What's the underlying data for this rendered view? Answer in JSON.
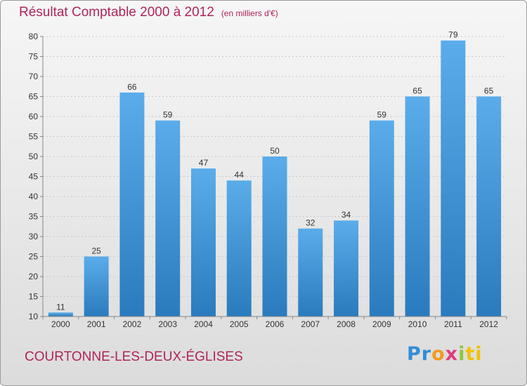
{
  "header": {
    "title": "Résultat Comptable 2000 à 2012",
    "unit": "(en milliers d'€)"
  },
  "footer": {
    "commune": "COURTONNE-LES-DEUX-ÉGLISES",
    "logo": [
      "Pr",
      "o",
      "x",
      "i",
      "ti"
    ]
  },
  "colors": {
    "bar_top": "#5aacea",
    "bar_bottom": "#2a7bbd",
    "title": "#b0245a",
    "axis_text": "#333333",
    "grid": "#c8c8c8"
  },
  "chart_data": {
    "type": "bar",
    "categories": [
      "2000",
      "2001",
      "2002",
      "2003",
      "2004",
      "2005",
      "2006",
      "2007",
      "2008",
      "2009",
      "2010",
      "2011",
      "2012"
    ],
    "values": [
      11,
      25,
      66,
      59,
      47,
      44,
      50,
      32,
      34,
      59,
      65,
      79,
      65
    ],
    "ylim": [
      10,
      80
    ],
    "yticks": [
      10,
      15,
      20,
      25,
      30,
      35,
      40,
      45,
      50,
      55,
      60,
      65,
      70,
      75,
      80
    ],
    "grid": true,
    "data_labels": true
  }
}
